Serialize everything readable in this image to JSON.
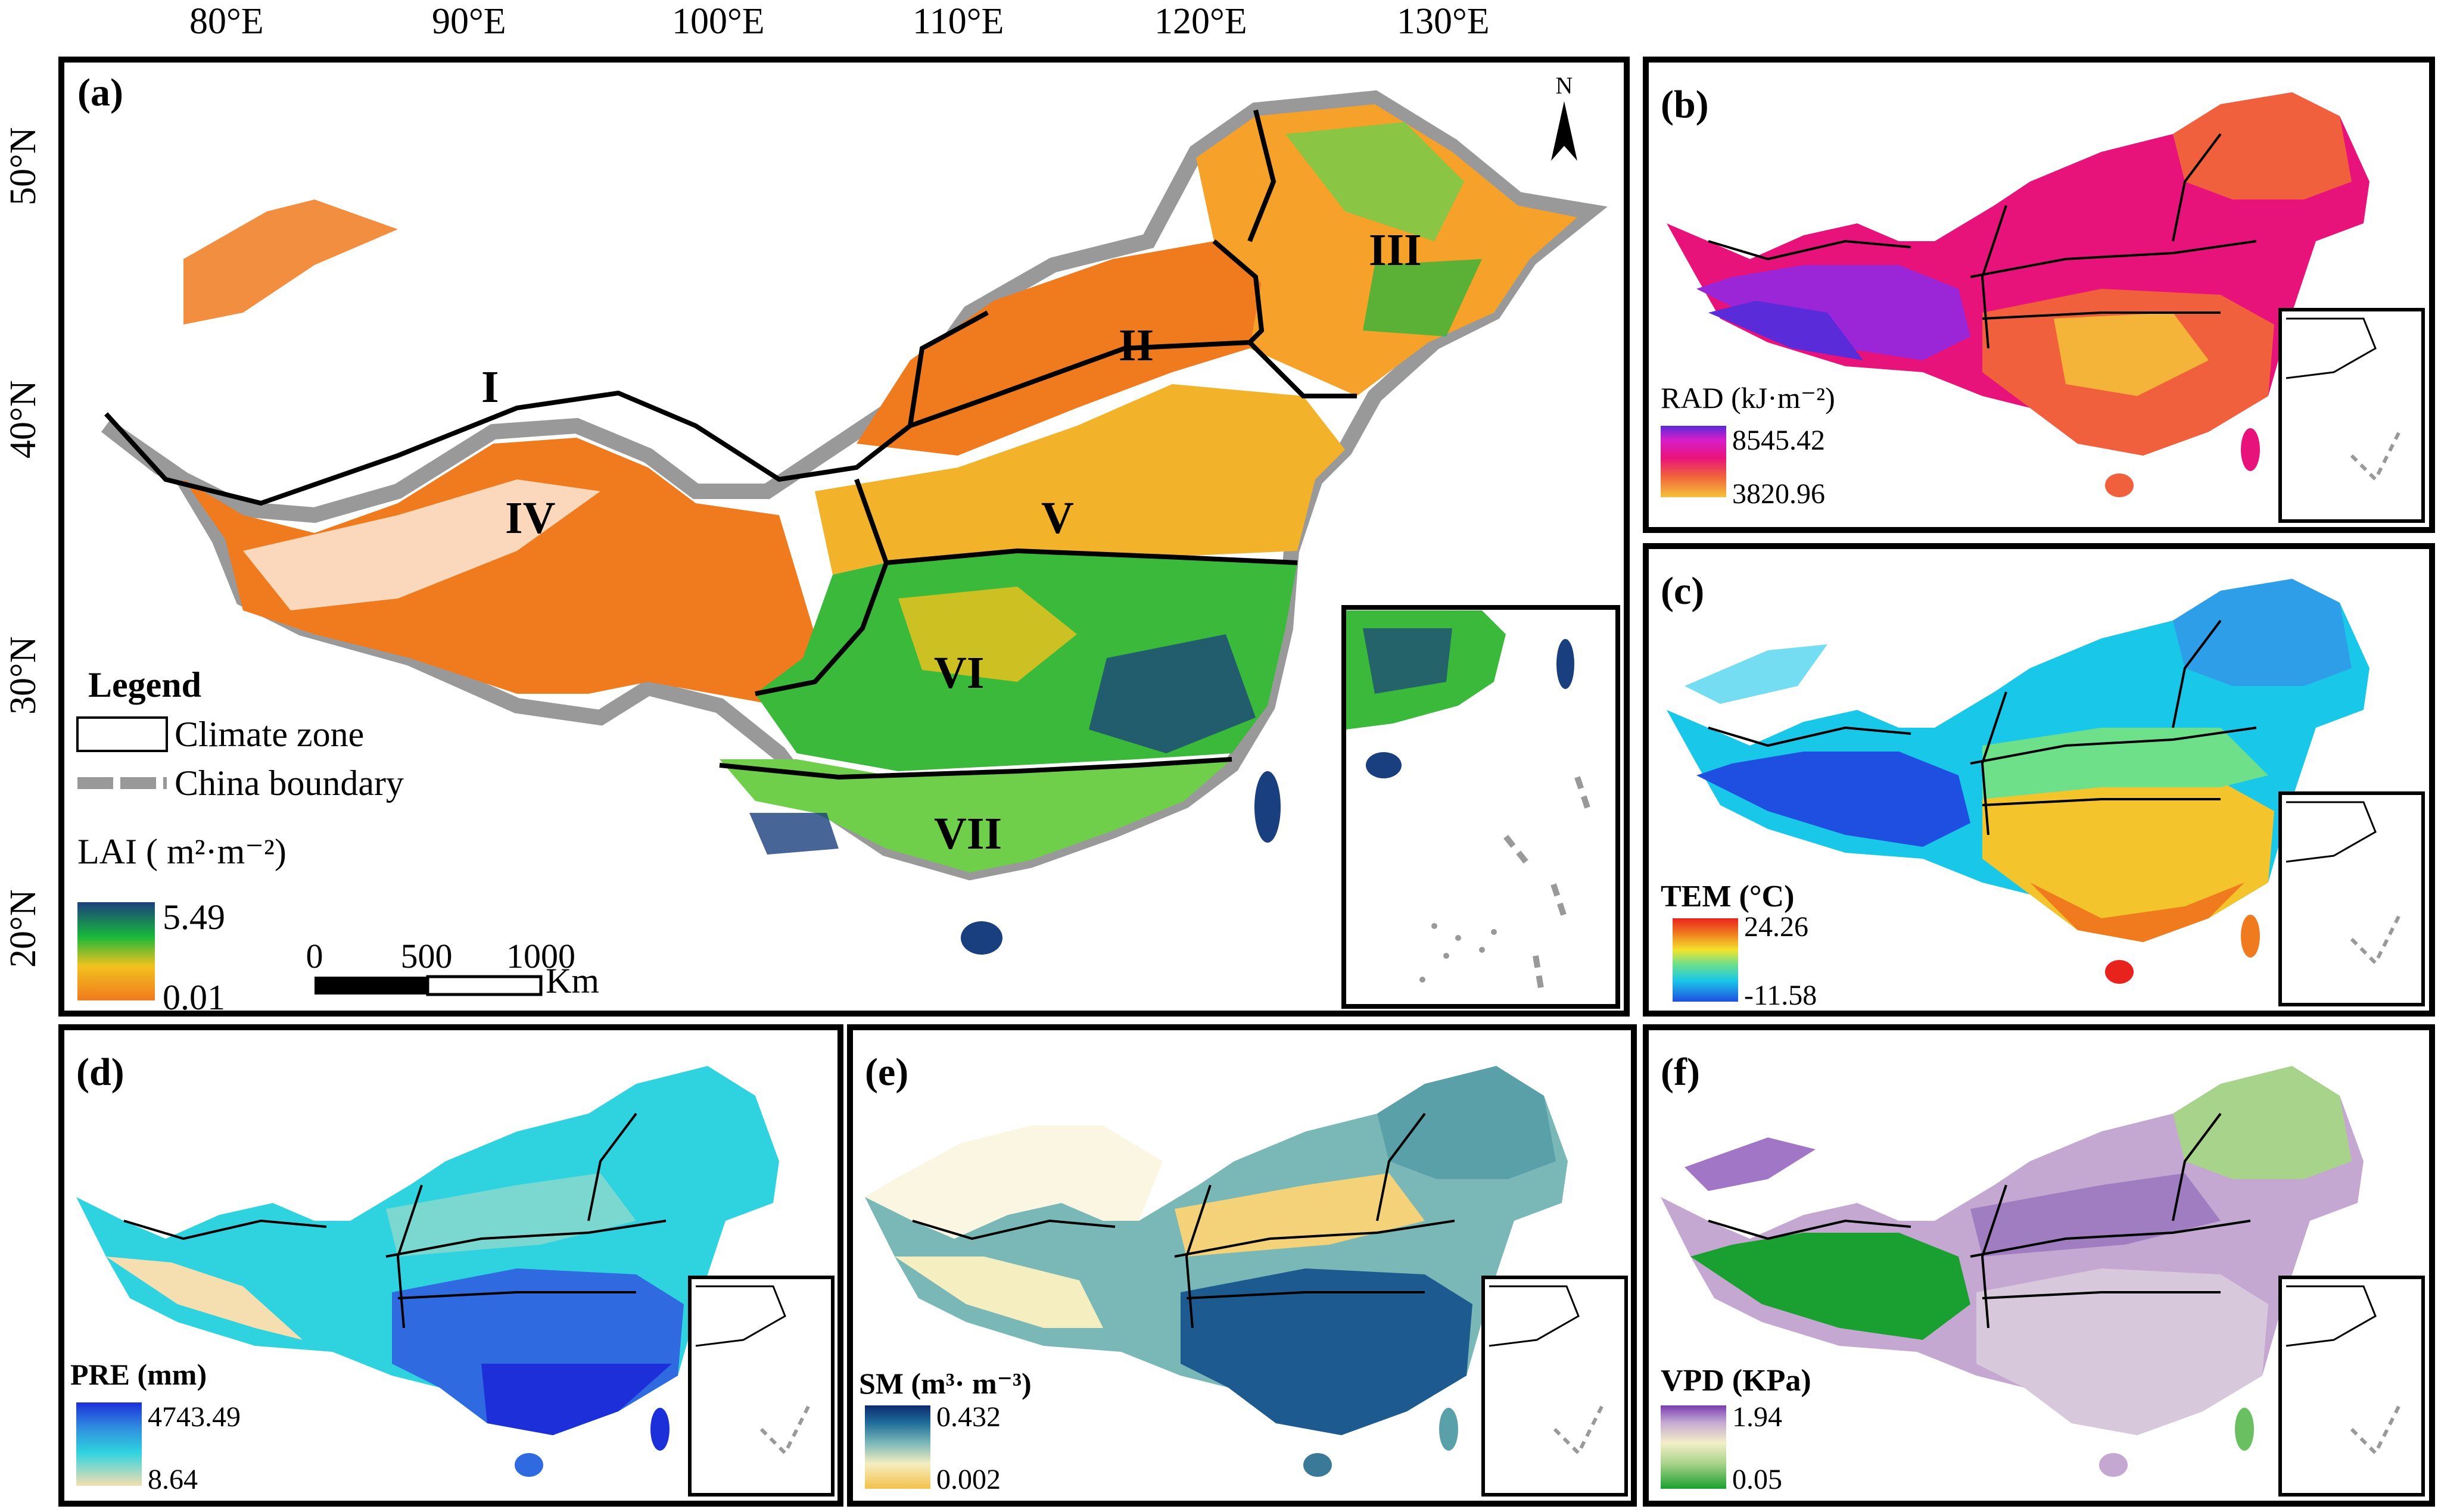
{
  "coordinates": {
    "longitudes": [
      "80°E",
      "90°E",
      "100°E",
      "110°E",
      "120°E",
      "130°E"
    ],
    "latitudes": [
      "50°N",
      "40°N",
      "30°N",
      "20°N"
    ]
  },
  "panel_a": {
    "label": "(a)",
    "north": "N",
    "zones": [
      "I",
      "II",
      "III",
      "IV",
      "V",
      "VI",
      "VII"
    ],
    "legend_title": "Legend",
    "legend_climate_zone": "Climate zone",
    "legend_boundary": "China boundary",
    "colorbar_title": "LAI ( m²·m⁻²)",
    "colorbar_max": "5.49",
    "colorbar_min": "0.01",
    "colors": [
      "#f07a1e",
      "#f2c21e",
      "#18b83a",
      "#1a3f7e"
    ],
    "scale_ticks": [
      "0",
      "500",
      "1000"
    ],
    "scale_unit": "Km"
  },
  "panel_b": {
    "label": "(b)",
    "colorbar_title": "RAD (kJ·m⁻²)",
    "max": "8545.42",
    "min": "3820.96",
    "colors": [
      "#f5c33a",
      "#f0603c",
      "#e8137a",
      "#d71ec9",
      "#5a2bd8"
    ]
  },
  "panel_c": {
    "label": "(c)",
    "colorbar_title": "TEM (°C)",
    "max": "24.26",
    "min": "-11.58",
    "colors": [
      "#1f4fe0",
      "#19c7e8",
      "#6ee08a",
      "#f3e32c",
      "#f07a1e",
      "#e8231e"
    ]
  },
  "panel_d": {
    "label": "(d)",
    "colorbar_title": "PRE (mm)",
    "max": "4743.49",
    "min": "8.64",
    "colors": [
      "#f5deb0",
      "#2fd3e0",
      "#2f8de0",
      "#1c2fd8"
    ]
  },
  "panel_e": {
    "label": "(e)",
    "colorbar_title": "SM (m³· m⁻³)",
    "max": "0.432",
    "min": "0.002",
    "colors": [
      "#f3c24a",
      "#f5eec0",
      "#7ab8b8",
      "#1d6a98",
      "#0b2a6e"
    ]
  },
  "panel_f": {
    "label": "(f)",
    "colorbar_title": "VPD (KPa)",
    "max": "1.94",
    "min": "0.05",
    "colors": [
      "#1aa030",
      "#a8d38a",
      "#f3efc8",
      "#c4a8d2",
      "#7a3cae"
    ]
  }
}
